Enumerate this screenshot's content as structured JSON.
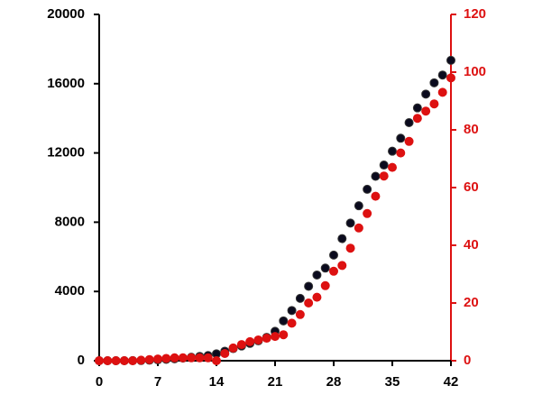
{
  "chart_data": {
    "type": "scatter",
    "x": [
      0,
      1,
      2,
      3,
      4,
      5,
      6,
      7,
      8,
      9,
      10,
      11,
      12,
      13,
      14,
      15,
      16,
      17,
      18,
      19,
      20,
      21,
      22,
      23,
      24,
      25,
      26,
      27,
      28,
      29,
      30,
      31,
      32,
      33,
      34,
      35,
      36,
      37,
      38,
      39,
      40,
      41,
      42
    ],
    "series": [
      {
        "color": "#0b0b1e",
        "values": [
          0,
          0,
          0,
          0,
          5,
          10,
          30,
          50,
          80,
          110,
          150,
          200,
          250,
          300,
          400,
          550,
          700,
          850,
          1000,
          1150,
          1350,
          1700,
          2300,
          2900,
          3600,
          4300,
          4950,
          5350,
          6100,
          7050,
          7950,
          8950,
          9900,
          10650,
          11300,
          12100,
          12850,
          13750,
          14600,
          15400,
          16050,
          16500,
          17350
        ]
      },
      {
        "color": "#dd1111",
        "axis": "y2",
        "values": [
          0,
          0,
          0,
          0,
          0,
          0.2,
          0.4,
          0.6,
          0.8,
          1,
          1,
          1,
          1,
          1,
          0,
          2.5,
          4.4,
          5.6,
          6.6,
          7.2,
          7.8,
          8.4,
          9,
          13,
          16,
          20,
          22,
          26,
          31,
          33,
          39,
          46,
          51,
          57,
          64,
          67,
          72,
          76,
          84,
          86.5,
          89,
          93,
          98
        ]
      }
    ],
    "xlim": [
      0,
      42
    ],
    "xticks": [
      0,
      7,
      14,
      21,
      28,
      35,
      42
    ],
    "ylim": [
      0,
      20000
    ],
    "yticks": [
      0,
      4000,
      8000,
      12000,
      16000,
      20000
    ],
    "y2lim": [
      0,
      120
    ],
    "y2ticks": [
      0,
      20,
      40,
      60,
      80,
      100,
      120
    ],
    "grid": false
  }
}
